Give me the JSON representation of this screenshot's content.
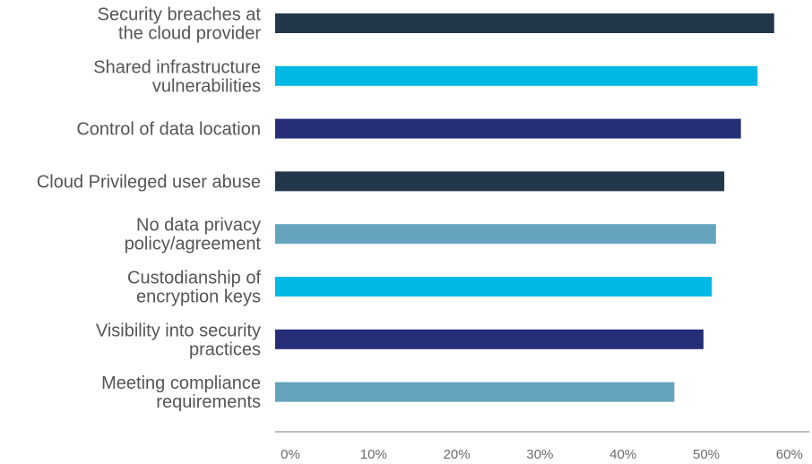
{
  "chart_data": {
    "type": "bar",
    "orientation": "horizontal",
    "title": "",
    "xlabel": "",
    "ylabel": "",
    "categories": [
      [
        "Security breaches at",
        "the cloud provider"
      ],
      [
        "Shared infrastructure",
        "vulnerabilities"
      ],
      [
        "Control of data location"
      ],
      [
        "Cloud Privileged user abuse"
      ],
      [
        "No data privacy",
        "policy/agreement"
      ],
      [
        "Custodianship of",
        "encryption keys"
      ],
      [
        "Visibility into security",
        "practices"
      ],
      [
        "Meeting compliance",
        "requirements"
      ]
    ],
    "values": [
      60,
      58,
      56,
      54,
      53,
      52.5,
      51.5,
      48
    ],
    "bar_colors": [
      "#22384a",
      "#00b8e4",
      "#262e78",
      "#22384a",
      "#66a3bf",
      "#00b8e4",
      "#262e78",
      "#66a3bf"
    ],
    "xlim": [
      0,
      65
    ],
    "ticks": [
      0,
      10,
      20,
      30,
      40,
      50,
      60
    ],
    "tick_labels": [
      "0%",
      "10%",
      "20%",
      "30%",
      "40%",
      "50%",
      "60%"
    ],
    "axis_color": "#a6a6a6",
    "label_color": "#555555",
    "grid": false,
    "legend": "none"
  }
}
